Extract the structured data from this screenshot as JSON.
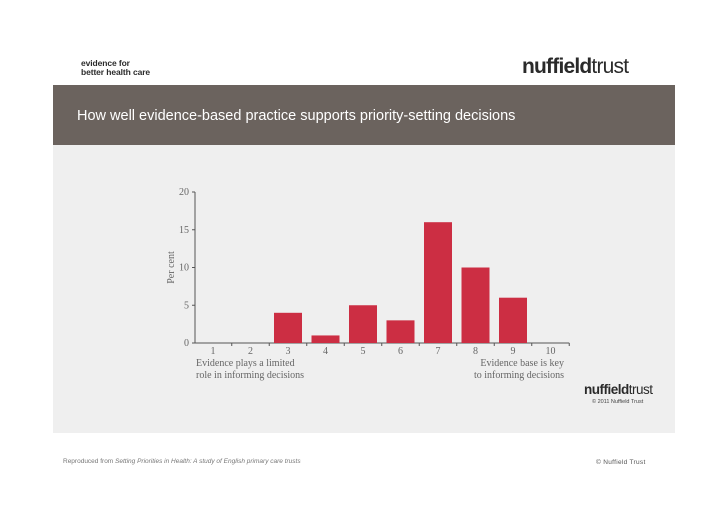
{
  "header": {
    "tagline_line1": "evidence for",
    "tagline_line2": "better health care",
    "logo_part1": "nuffield",
    "logo_part2": "trust"
  },
  "title": "How well evidence-based practice supports priority-setting decisions",
  "chart_data": {
    "type": "bar",
    "categories": [
      "1",
      "2",
      "3",
      "4",
      "5",
      "6",
      "7",
      "8",
      "9",
      "10"
    ],
    "values": [
      0,
      0,
      4,
      1,
      5,
      3,
      16,
      10,
      6,
      0
    ],
    "ylabel": "Per cent",
    "ylim": [
      0,
      20
    ],
    "yticks": [
      0,
      5,
      10,
      15,
      20
    ],
    "left_annotation": [
      "Evidence plays a limited",
      "role in informing decisions"
    ],
    "right_annotation": [
      "Evidence base is key",
      "to informing decisions"
    ],
    "bar_color": "#cc2e43",
    "grid": false
  },
  "chart_logo": {
    "part1": "nuffield",
    "part2": "trust",
    "copyright": "© 2011 Nuffield Trust"
  },
  "footer": {
    "source_prefix": "Reproduced from ",
    "source_title": "Setting Priorities in Health: A study of English primary care trusts",
    "copyright": "© Nuffield Trust"
  },
  "colors": {
    "title_band": "#6b635e",
    "chart_panel": "#efefef",
    "bar": "#cc2e43"
  }
}
